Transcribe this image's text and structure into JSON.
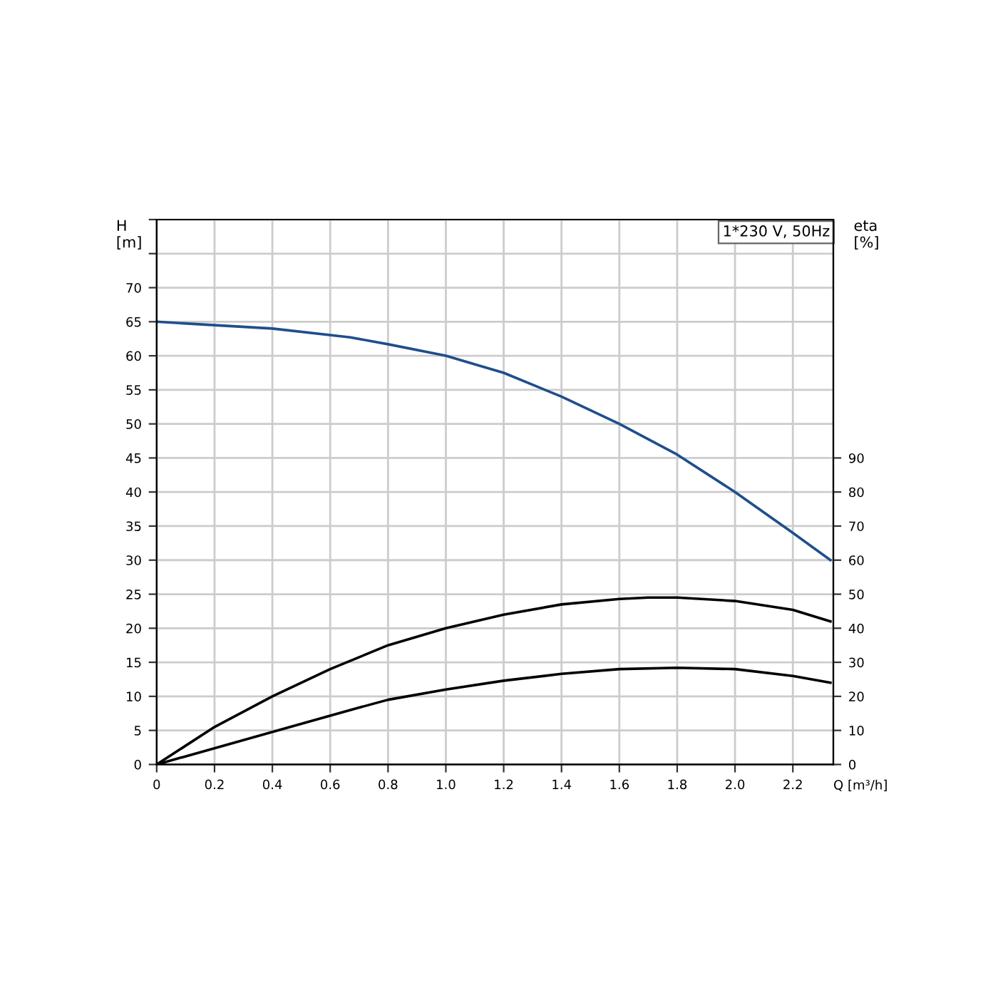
{
  "chart_data": {
    "type": "line",
    "xlabel": "Q [m³/h]",
    "ylabel": "H\n[m]",
    "y2label": "eta\n[%]",
    "annotations": [
      "1*230 V, 50Hz"
    ],
    "xlim": [
      0,
      2.34
    ],
    "xticks": [
      {
        "value": 0,
        "label": "0"
      },
      0.2,
      0.4,
      0.6,
      0.8,
      {
        "value": 1.0,
        "label": "1.0"
      },
      1.2,
      1.4,
      1.6,
      1.8,
      {
        "value": 2.0,
        "label": "2.0"
      },
      2.2
    ],
    "ylim": [
      0,
      80
    ],
    "yticks": [
      0,
      5,
      10,
      15,
      20,
      25,
      30,
      35,
      40,
      45,
      50,
      55,
      60,
      65,
      70,
      {
        "value": 75,
        "label": null
      },
      {
        "value": 80,
        "label": null
      }
    ],
    "y2lim": [
      0,
      160
    ],
    "y2ticks": [
      0,
      10,
      20,
      30,
      40,
      50,
      60,
      70,
      80,
      90
    ],
    "grid": true,
    "series": [
      {
        "color": "#1f4e8c",
        "x": [
          0,
          0.2,
          0.4,
          0.67,
          0.8,
          1.0,
          1.2,
          1.4,
          1.6,
          1.8,
          2.0,
          2.2,
          2.33
        ],
        "values": [
          65,
          64.5,
          64,
          62.7,
          61.7,
          60,
          57.5,
          54,
          50,
          45.5,
          40,
          34,
          30
        ]
      },
      {
        "color": "#000000",
        "axis": "y2",
        "x": [
          0,
          0.2,
          0.4,
          0.6,
          0.8,
          1.0,
          1.2,
          1.4,
          1.6,
          1.7,
          1.8,
          2.0,
          2.2,
          2.33
        ],
        "values": [
          0,
          11,
          20,
          28,
          35,
          40,
          44,
          47,
          48.6,
          49,
          49,
          48,
          45.4,
          42
        ]
      },
      {
        "color": "#000000",
        "axis": "y2",
        "x": [
          0,
          0.67,
          0.8,
          1.0,
          1.2,
          1.4,
          1.6,
          1.8,
          2.0,
          2.2,
          2.33
        ],
        "values": [
          0,
          16,
          19,
          22,
          24.6,
          26.6,
          28,
          28.4,
          28,
          26,
          24
        ]
      }
    ]
  }
}
